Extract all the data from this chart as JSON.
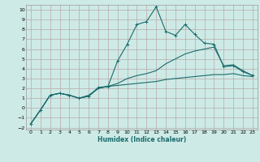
{
  "xlabel": "Humidex (Indice chaleur)",
  "background_color": "#cdeae6",
  "grid_color": "#b8a8a8",
  "line_color": "#1a6b6b",
  "xlim": [
    -0.5,
    23.5
  ],
  "ylim": [
    -2.2,
    10.5
  ],
  "xticks": [
    0,
    1,
    2,
    3,
    4,
    5,
    6,
    7,
    8,
    9,
    10,
    11,
    12,
    13,
    14,
    15,
    16,
    17,
    18,
    19,
    20,
    21,
    22,
    23
  ],
  "yticks": [
    -2,
    -1,
    0,
    1,
    2,
    3,
    4,
    5,
    6,
    7,
    8,
    9,
    10
  ],
  "line1_x": [
    0,
    1,
    2,
    3,
    4,
    5,
    6,
    7,
    8,
    9,
    10,
    11,
    12,
    13,
    14,
    15,
    16,
    17,
    18,
    19,
    20,
    21,
    22,
    23
  ],
  "line1_y": [
    -1.6,
    -0.2,
    1.3,
    1.5,
    1.3,
    1.0,
    1.2,
    2.1,
    2.2,
    4.8,
    6.5,
    8.5,
    8.8,
    10.3,
    7.8,
    7.4,
    8.5,
    7.5,
    6.6,
    6.5,
    4.2,
    4.3,
    3.7,
    3.3
  ],
  "line2_x": [
    0,
    1,
    2,
    3,
    4,
    5,
    6,
    7,
    8,
    9,
    10,
    11,
    12,
    13,
    14,
    15,
    16,
    17,
    18,
    19,
    20,
    21,
    22,
    23
  ],
  "line2_y": [
    -1.6,
    -0.2,
    1.3,
    1.5,
    1.3,
    1.0,
    1.3,
    2.0,
    2.2,
    2.5,
    3.0,
    3.3,
    3.5,
    3.8,
    4.5,
    5.0,
    5.5,
    5.8,
    6.0,
    6.2,
    4.3,
    4.4,
    3.8,
    3.3
  ],
  "line3_x": [
    0,
    1,
    2,
    3,
    4,
    5,
    6,
    7,
    8,
    9,
    10,
    11,
    12,
    13,
    14,
    15,
    16,
    17,
    18,
    19,
    20,
    21,
    22,
    23
  ],
  "line3_y": [
    -1.6,
    -0.2,
    1.3,
    1.5,
    1.3,
    1.0,
    1.2,
    2.0,
    2.2,
    2.3,
    2.4,
    2.5,
    2.6,
    2.7,
    2.9,
    3.0,
    3.1,
    3.2,
    3.3,
    3.4,
    3.4,
    3.5,
    3.3,
    3.2
  ]
}
